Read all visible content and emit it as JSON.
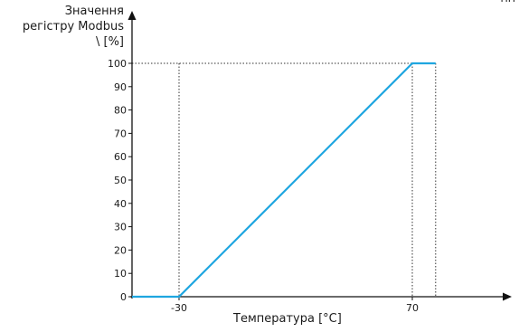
{
  "corner_text": "ПП",
  "chart_data": {
    "type": "line",
    "ylabel_lines": [
      "Значення",
      "регістру Modbus",
      "\\ [%]"
    ],
    "xlabel": "Температура [°C]",
    "yticks": [
      0,
      10,
      20,
      30,
      40,
      50,
      60,
      70,
      80,
      90,
      100
    ],
    "xticks": [
      -30,
      70
    ],
    "ylim": [
      0,
      100
    ],
    "series": [
      {
        "x": [
          -50,
          -30,
          70,
          80
        ],
        "y": [
          0,
          0,
          100,
          100
        ],
        "color": "#1fa6e0"
      }
    ],
    "reference_lines": [
      {
        "x": -30,
        "y": 100
      },
      {
        "x": 70,
        "y": 100
      },
      {
        "x": 80,
        "y": 100
      }
    ],
    "colors": {
      "axis": "#111111",
      "line": "#1fa6e0",
      "guide": "#333333"
    }
  }
}
